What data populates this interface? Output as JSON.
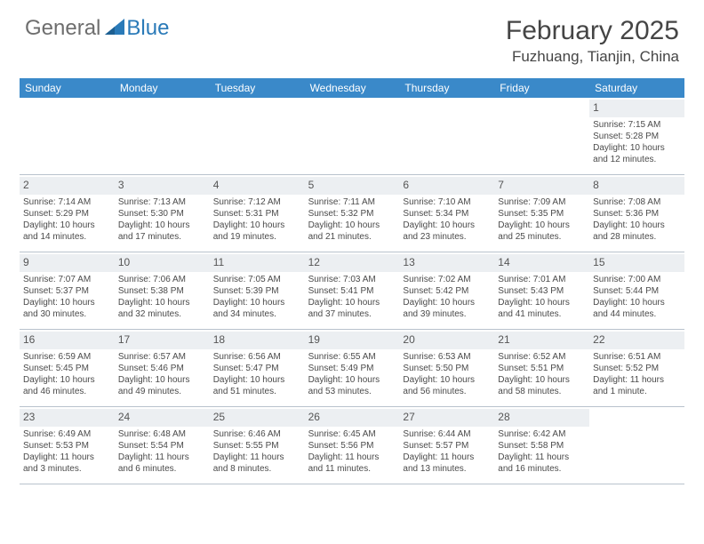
{
  "brand": {
    "word1": "General",
    "word2": "Blue"
  },
  "title": "February 2025",
  "location": "Fuzhuang, Tianjin, China",
  "colors": {
    "header_bg": "#3a89c9",
    "daynum_bg": "#eceff2",
    "text": "#4a4a4a",
    "rule": "#b8c2cc",
    "brand_gray": "#6e6e6e",
    "brand_blue": "#2a7ab8"
  },
  "dayNames": [
    "Sunday",
    "Monday",
    "Tuesday",
    "Wednesday",
    "Thursday",
    "Friday",
    "Saturday"
  ],
  "weeks": [
    [
      {
        "n": "",
        "sr": "",
        "ss": "",
        "dl": ""
      },
      {
        "n": "",
        "sr": "",
        "ss": "",
        "dl": ""
      },
      {
        "n": "",
        "sr": "",
        "ss": "",
        "dl": ""
      },
      {
        "n": "",
        "sr": "",
        "ss": "",
        "dl": ""
      },
      {
        "n": "",
        "sr": "",
        "ss": "",
        "dl": ""
      },
      {
        "n": "",
        "sr": "",
        "ss": "",
        "dl": ""
      },
      {
        "n": "1",
        "sr": "Sunrise: 7:15 AM",
        "ss": "Sunset: 5:28 PM",
        "dl": "Daylight: 10 hours and 12 minutes."
      }
    ],
    [
      {
        "n": "2",
        "sr": "Sunrise: 7:14 AM",
        "ss": "Sunset: 5:29 PM",
        "dl": "Daylight: 10 hours and 14 minutes."
      },
      {
        "n": "3",
        "sr": "Sunrise: 7:13 AM",
        "ss": "Sunset: 5:30 PM",
        "dl": "Daylight: 10 hours and 17 minutes."
      },
      {
        "n": "4",
        "sr": "Sunrise: 7:12 AM",
        "ss": "Sunset: 5:31 PM",
        "dl": "Daylight: 10 hours and 19 minutes."
      },
      {
        "n": "5",
        "sr": "Sunrise: 7:11 AM",
        "ss": "Sunset: 5:32 PM",
        "dl": "Daylight: 10 hours and 21 minutes."
      },
      {
        "n": "6",
        "sr": "Sunrise: 7:10 AM",
        "ss": "Sunset: 5:34 PM",
        "dl": "Daylight: 10 hours and 23 minutes."
      },
      {
        "n": "7",
        "sr": "Sunrise: 7:09 AM",
        "ss": "Sunset: 5:35 PM",
        "dl": "Daylight: 10 hours and 25 minutes."
      },
      {
        "n": "8",
        "sr": "Sunrise: 7:08 AM",
        "ss": "Sunset: 5:36 PM",
        "dl": "Daylight: 10 hours and 28 minutes."
      }
    ],
    [
      {
        "n": "9",
        "sr": "Sunrise: 7:07 AM",
        "ss": "Sunset: 5:37 PM",
        "dl": "Daylight: 10 hours and 30 minutes."
      },
      {
        "n": "10",
        "sr": "Sunrise: 7:06 AM",
        "ss": "Sunset: 5:38 PM",
        "dl": "Daylight: 10 hours and 32 minutes."
      },
      {
        "n": "11",
        "sr": "Sunrise: 7:05 AM",
        "ss": "Sunset: 5:39 PM",
        "dl": "Daylight: 10 hours and 34 minutes."
      },
      {
        "n": "12",
        "sr": "Sunrise: 7:03 AM",
        "ss": "Sunset: 5:41 PM",
        "dl": "Daylight: 10 hours and 37 minutes."
      },
      {
        "n": "13",
        "sr": "Sunrise: 7:02 AM",
        "ss": "Sunset: 5:42 PM",
        "dl": "Daylight: 10 hours and 39 minutes."
      },
      {
        "n": "14",
        "sr": "Sunrise: 7:01 AM",
        "ss": "Sunset: 5:43 PM",
        "dl": "Daylight: 10 hours and 41 minutes."
      },
      {
        "n": "15",
        "sr": "Sunrise: 7:00 AM",
        "ss": "Sunset: 5:44 PM",
        "dl": "Daylight: 10 hours and 44 minutes."
      }
    ],
    [
      {
        "n": "16",
        "sr": "Sunrise: 6:59 AM",
        "ss": "Sunset: 5:45 PM",
        "dl": "Daylight: 10 hours and 46 minutes."
      },
      {
        "n": "17",
        "sr": "Sunrise: 6:57 AM",
        "ss": "Sunset: 5:46 PM",
        "dl": "Daylight: 10 hours and 49 minutes."
      },
      {
        "n": "18",
        "sr": "Sunrise: 6:56 AM",
        "ss": "Sunset: 5:47 PM",
        "dl": "Daylight: 10 hours and 51 minutes."
      },
      {
        "n": "19",
        "sr": "Sunrise: 6:55 AM",
        "ss": "Sunset: 5:49 PM",
        "dl": "Daylight: 10 hours and 53 minutes."
      },
      {
        "n": "20",
        "sr": "Sunrise: 6:53 AM",
        "ss": "Sunset: 5:50 PM",
        "dl": "Daylight: 10 hours and 56 minutes."
      },
      {
        "n": "21",
        "sr": "Sunrise: 6:52 AM",
        "ss": "Sunset: 5:51 PM",
        "dl": "Daylight: 10 hours and 58 minutes."
      },
      {
        "n": "22",
        "sr": "Sunrise: 6:51 AM",
        "ss": "Sunset: 5:52 PM",
        "dl": "Daylight: 11 hours and 1 minute."
      }
    ],
    [
      {
        "n": "23",
        "sr": "Sunrise: 6:49 AM",
        "ss": "Sunset: 5:53 PM",
        "dl": "Daylight: 11 hours and 3 minutes."
      },
      {
        "n": "24",
        "sr": "Sunrise: 6:48 AM",
        "ss": "Sunset: 5:54 PM",
        "dl": "Daylight: 11 hours and 6 minutes."
      },
      {
        "n": "25",
        "sr": "Sunrise: 6:46 AM",
        "ss": "Sunset: 5:55 PM",
        "dl": "Daylight: 11 hours and 8 minutes."
      },
      {
        "n": "26",
        "sr": "Sunrise: 6:45 AM",
        "ss": "Sunset: 5:56 PM",
        "dl": "Daylight: 11 hours and 11 minutes."
      },
      {
        "n": "27",
        "sr": "Sunrise: 6:44 AM",
        "ss": "Sunset: 5:57 PM",
        "dl": "Daylight: 11 hours and 13 minutes."
      },
      {
        "n": "28",
        "sr": "Sunrise: 6:42 AM",
        "ss": "Sunset: 5:58 PM",
        "dl": "Daylight: 11 hours and 16 minutes."
      },
      {
        "n": "",
        "sr": "",
        "ss": "",
        "dl": ""
      }
    ]
  ]
}
